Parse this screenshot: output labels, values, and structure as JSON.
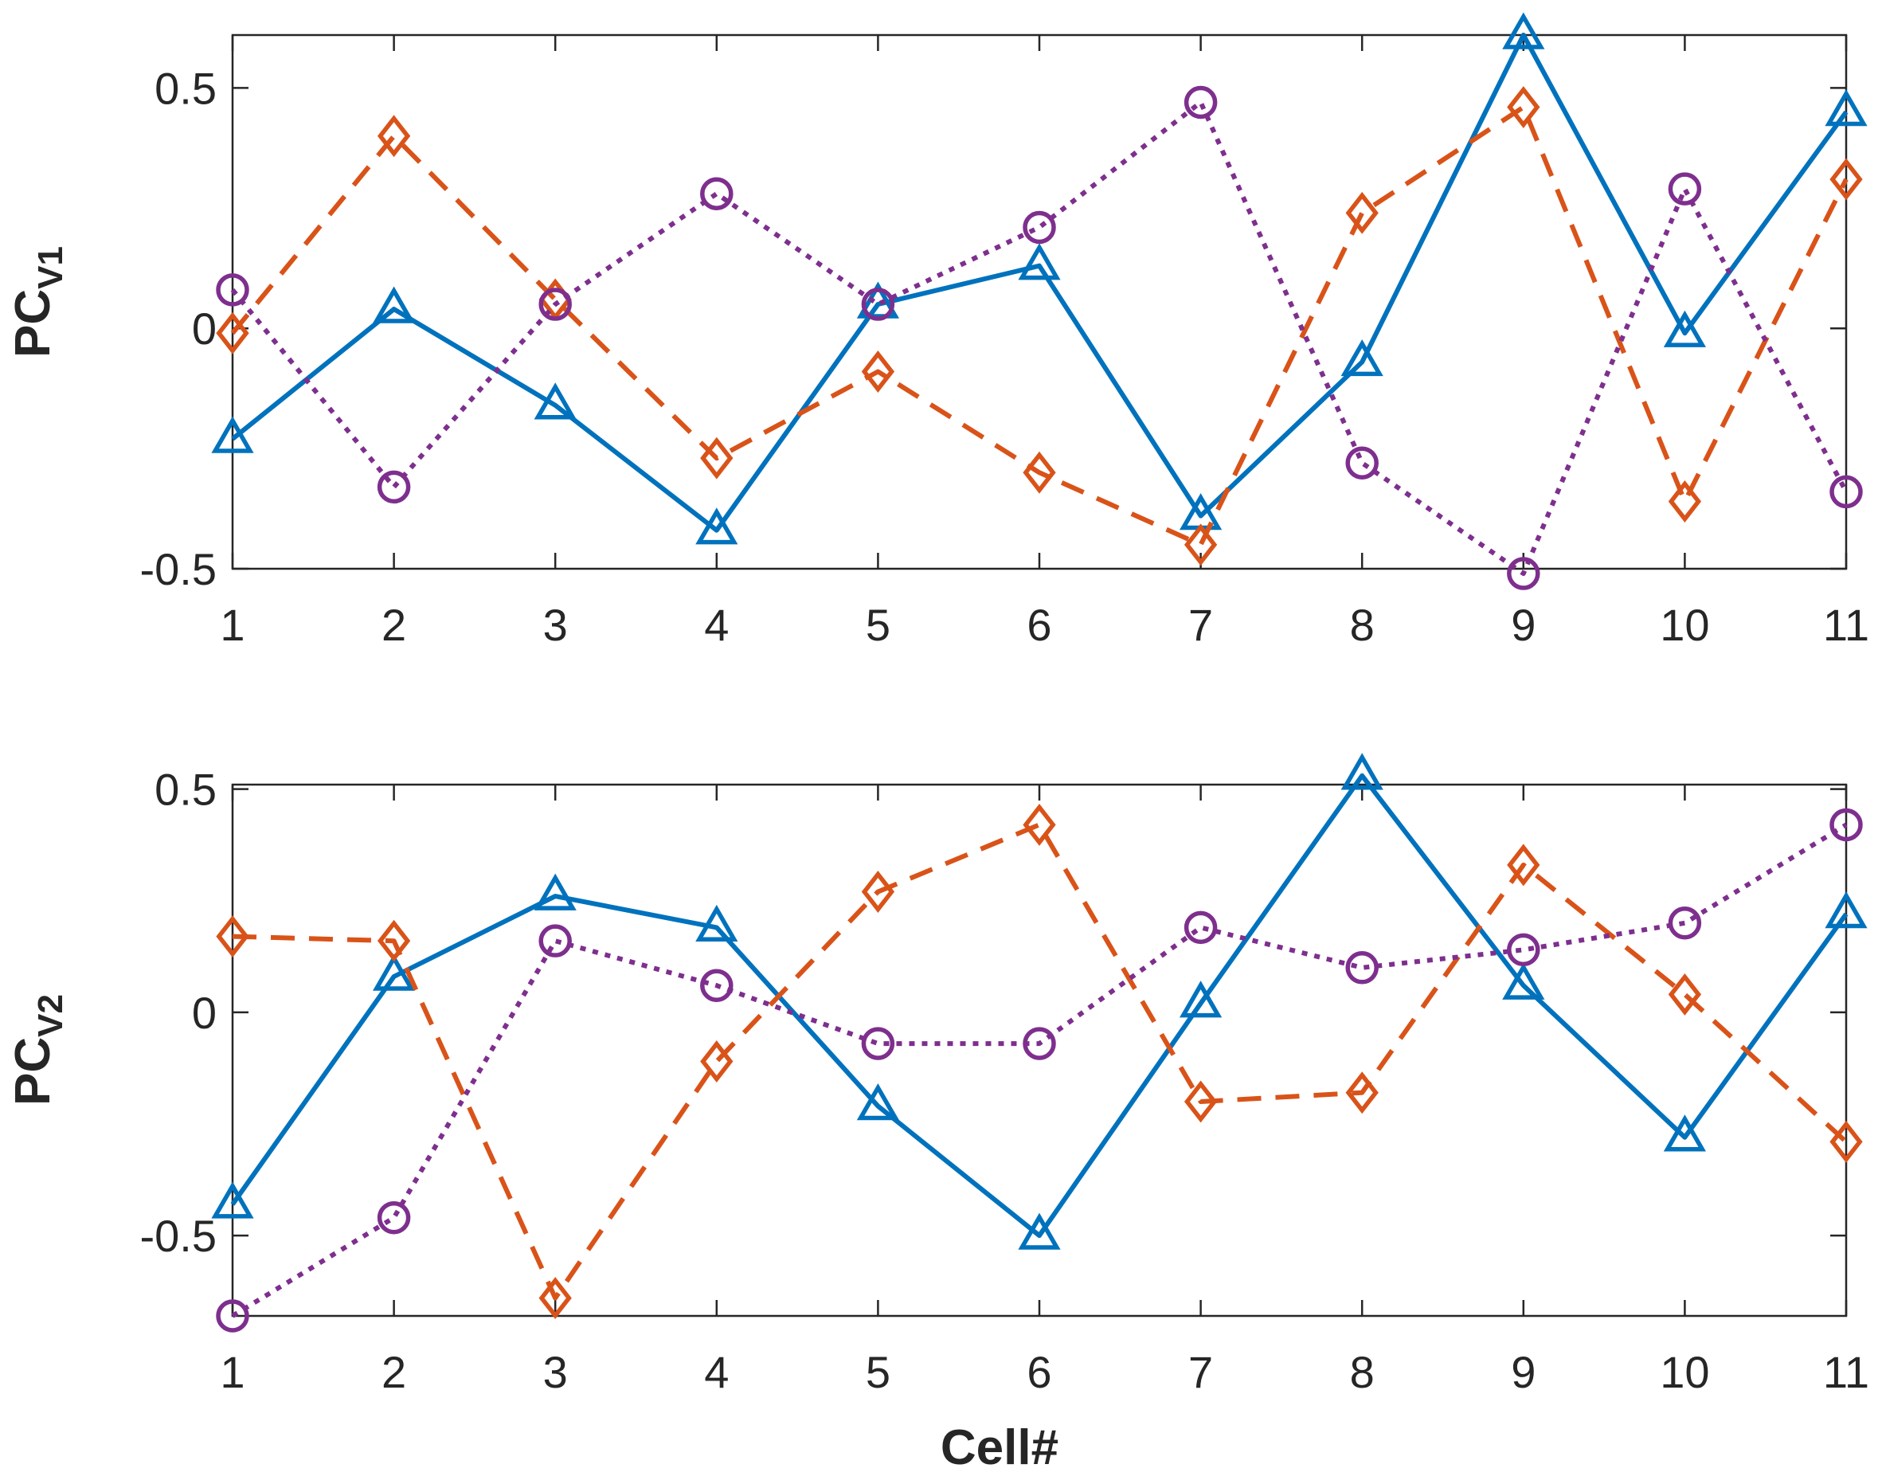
{
  "chart_data": [
    {
      "type": "line",
      "title": "",
      "xlabel": "",
      "ylabel": "PC",
      "ylabel_subscript": "V1",
      "xlim": [
        1,
        11
      ],
      "ylim": [
        -0.5,
        0.61
      ],
      "x_ticks": [
        "1",
        "2",
        "3",
        "4",
        "5",
        "6",
        "7",
        "8",
        "9",
        "10",
        "11"
      ],
      "y_ticks": [
        {
          "value": 0.5,
          "label": "0.5"
        },
        {
          "value": 0,
          "label": "0"
        },
        {
          "value": -0.5,
          "label": "-0.5"
        }
      ],
      "grid": false,
      "x": [
        1,
        2,
        3,
        4,
        5,
        6,
        7,
        8,
        9,
        10,
        11
      ],
      "series": [
        {
          "name": "triangle-solid",
          "marker": "triangle",
          "line": "solid",
          "color": "#0072BD",
          "values": [
            -0.23,
            0.04,
            -0.16,
            -0.42,
            0.05,
            0.13,
            -0.39,
            -0.07,
            0.61,
            -0.01,
            0.45
          ]
        },
        {
          "name": "diamond-dashed",
          "marker": "diamond",
          "line": "dashed",
          "color": "#D95319",
          "values": [
            -0.01,
            0.4,
            0.06,
            -0.27,
            -0.09,
            -0.3,
            -0.45,
            0.24,
            0.46,
            -0.36,
            0.31
          ]
        },
        {
          "name": "circle-dotted",
          "marker": "circle",
          "line": "dotted",
          "color": "#7E2F8E",
          "values": [
            0.08,
            -0.33,
            0.05,
            0.28,
            0.05,
            0.21,
            0.47,
            -0.28,
            -0.51,
            0.29,
            -0.34
          ]
        }
      ]
    },
    {
      "type": "line",
      "title": "",
      "xlabel": "Cell#",
      "ylabel": "PC",
      "ylabel_subscript": "V2",
      "xlim": [
        1,
        11
      ],
      "ylim": [
        -0.68,
        0.51
      ],
      "x_ticks": [
        "1",
        "2",
        "3",
        "4",
        "5",
        "6",
        "7",
        "8",
        "9",
        "10",
        "11"
      ],
      "y_ticks": [
        {
          "value": 0.5,
          "label": "0.5"
        },
        {
          "value": 0,
          "label": "0"
        },
        {
          "value": -0.5,
          "label": "-0.5"
        }
      ],
      "grid": false,
      "x": [
        1,
        2,
        3,
        4,
        5,
        6,
        7,
        8,
        9,
        10,
        11
      ],
      "series": [
        {
          "name": "triangle-solid",
          "marker": "triangle",
          "line": "solid",
          "color": "#0072BD",
          "values": [
            -0.43,
            0.08,
            0.26,
            0.19,
            -0.21,
            -0.5,
            0.02,
            0.53,
            0.06,
            -0.28,
            0.22
          ]
        },
        {
          "name": "diamond-dashed",
          "marker": "diamond",
          "line": "dashed",
          "color": "#D95319",
          "values": [
            0.17,
            0.16,
            -0.64,
            -0.11,
            0.27,
            0.42,
            -0.2,
            -0.18,
            0.33,
            0.04,
            -0.29
          ]
        },
        {
          "name": "circle-dotted",
          "marker": "circle",
          "line": "dotted",
          "color": "#7E2F8E",
          "values": [
            -0.68,
            -0.46,
            0.16,
            0.06,
            -0.07,
            -0.07,
            0.19,
            0.1,
            0.14,
            0.2,
            0.42
          ]
        }
      ]
    }
  ]
}
